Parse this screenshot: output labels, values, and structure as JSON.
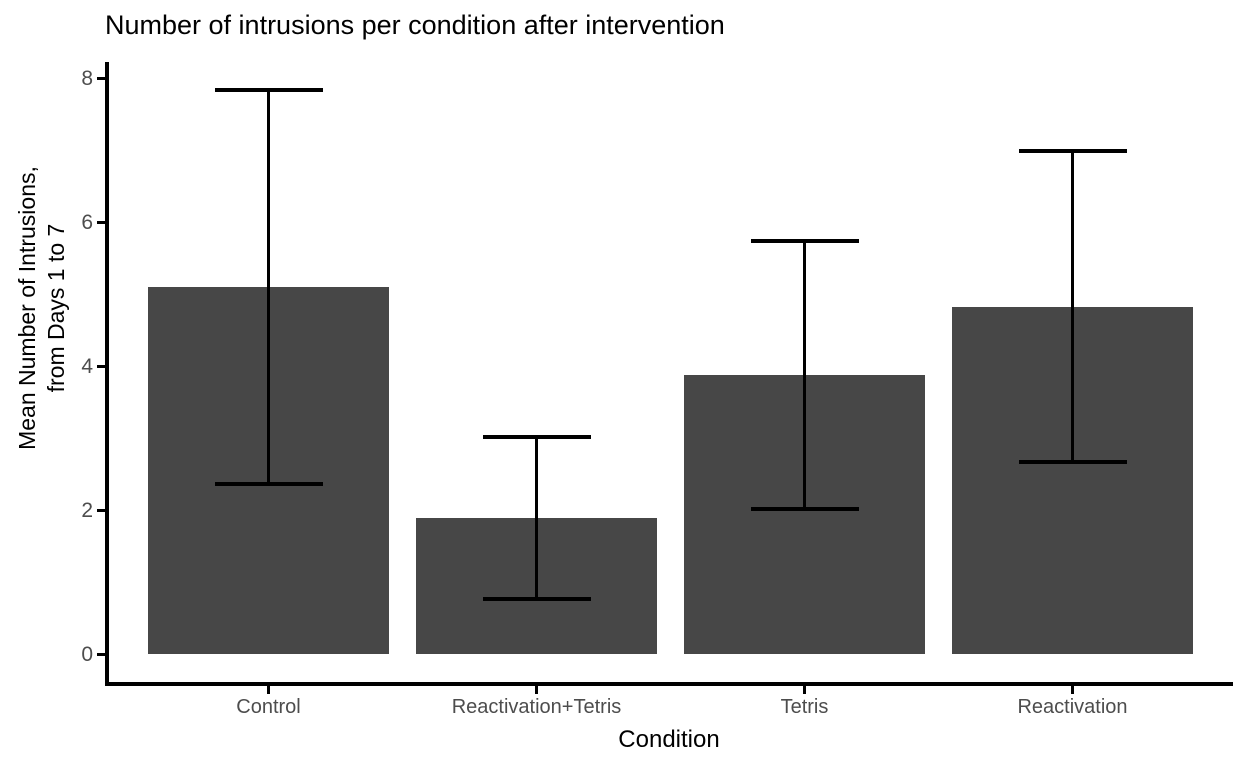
{
  "chart_data": {
    "type": "bar",
    "title": "Number of intrusions per condition after intervention",
    "xlabel": "Condition",
    "ylabel": "Mean Number of Intrusions, from Days 1 to 7",
    "ylabel_lines": [
      "Mean Number of Intrusions,",
      "from Days 1 to 7"
    ],
    "categories": [
      "Control",
      "Reactivation+Tetris",
      "Tetris",
      "Reactivation"
    ],
    "values": [
      5.11,
      1.89,
      3.88,
      4.83
    ],
    "error_low": [
      2.37,
      0.76,
      2.01,
      2.67
    ],
    "error_high": [
      7.85,
      3.02,
      5.75,
      7.0
    ],
    "error_style": "capped error bars",
    "yticks": [
      0,
      2,
      4,
      6,
      8
    ],
    "ylim": [
      0,
      8
    ],
    "grid": "off",
    "legend": "none",
    "bar_color": "#474747",
    "axis_line_color": "#000000",
    "tick_label_color": "#4d4d4d",
    "background_color": "#ffffff"
  }
}
